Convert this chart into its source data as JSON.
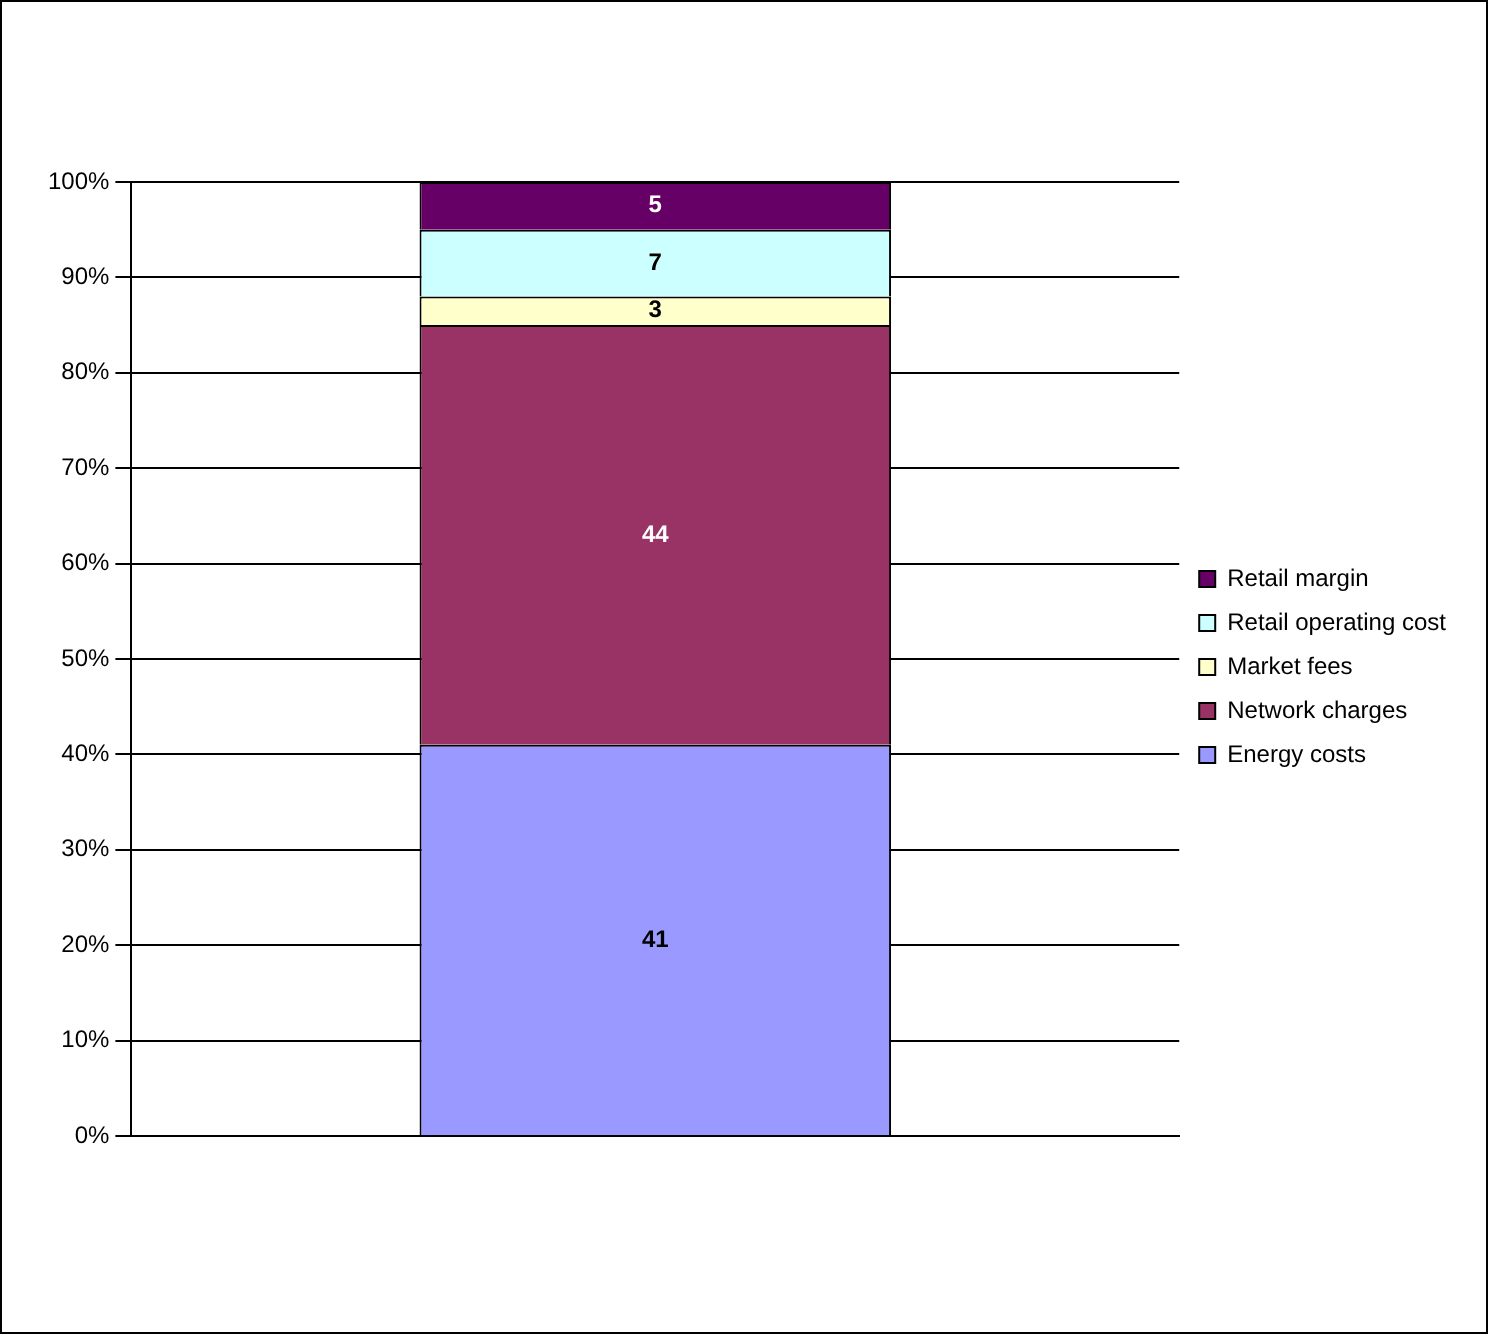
{
  "chart_data": {
    "type": "bar",
    "stacked": true,
    "categories": [
      null
    ],
    "series": [
      {
        "name": "Energy costs",
        "color": "#9999ff",
        "values": [
          41
        ]
      },
      {
        "name": "Network charges",
        "color": "#993366",
        "values": [
          44
        ]
      },
      {
        "name": "Market fees",
        "color": "#ffffcc",
        "values": [
          3
        ]
      },
      {
        "name": "Retail operating cost",
        "color": "#ccffff",
        "values": [
          7
        ]
      },
      {
        "name": "Retail margin",
        "color": "#660066",
        "values": [
          5
        ]
      }
    ],
    "ylim": [
      0,
      100
    ],
    "yticks": [
      {
        "value": 0,
        "label": "0%"
      },
      {
        "value": 10,
        "label": "10%"
      },
      {
        "value": 20,
        "label": "20%"
      },
      {
        "value": 30,
        "label": "30%"
      },
      {
        "value": 40,
        "label": "40%"
      },
      {
        "value": 50,
        "label": "50%"
      },
      {
        "value": 60,
        "label": "60%"
      },
      {
        "value": 70,
        "label": "70%"
      },
      {
        "value": 80,
        "label": "80%"
      },
      {
        "value": 90,
        "label": "90%"
      },
      {
        "value": 100,
        "label": "100%"
      }
    ],
    "grid": "y",
    "legend": "right",
    "data_labels": true
  }
}
